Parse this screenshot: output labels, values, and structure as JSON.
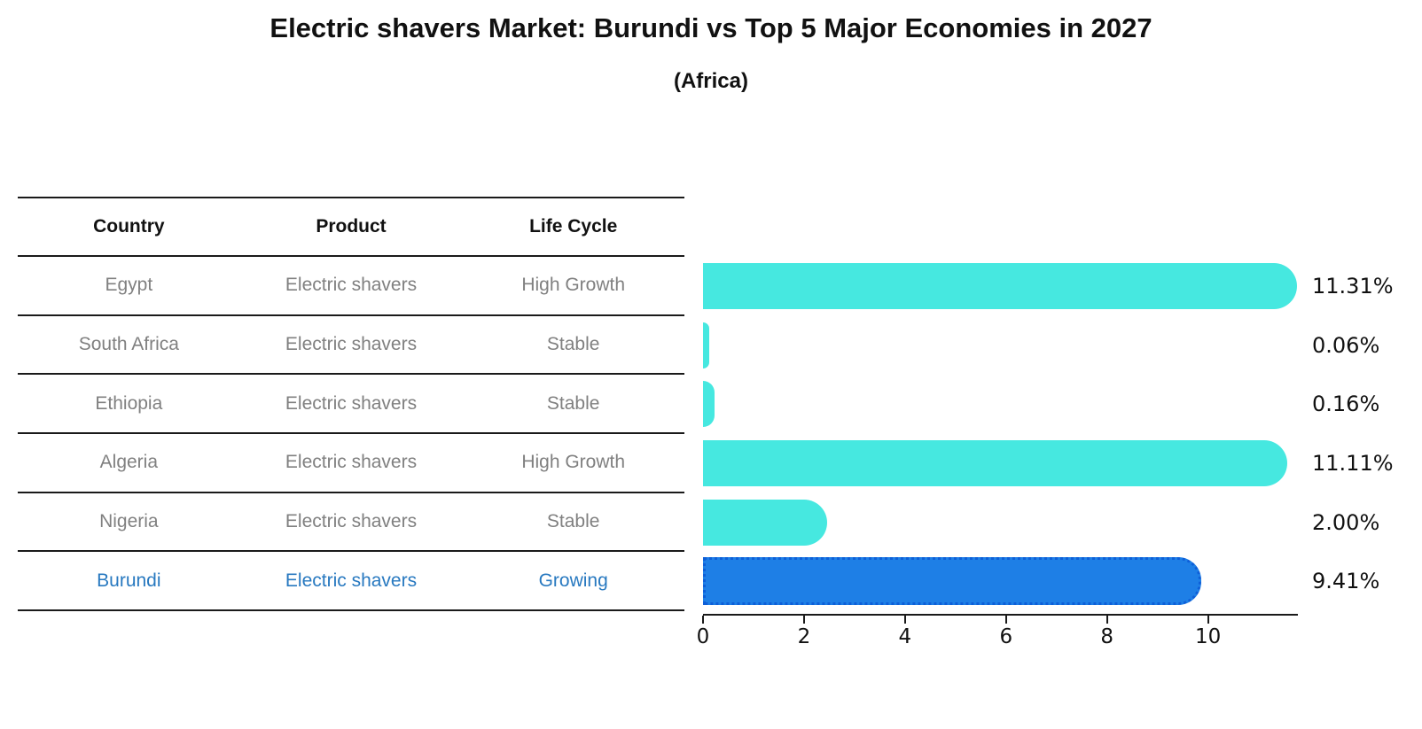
{
  "title": "Electric shavers Market: Burundi vs Top 5 Major Economies in 2027",
  "subtitle": "(Africa)",
  "table": {
    "headers": {
      "country": "Country",
      "product": "Product",
      "life_cycle": "Life Cycle"
    },
    "rows": [
      {
        "country": "Egypt",
        "product": "Electric shavers",
        "life_cycle": "High Growth"
      },
      {
        "country": "South Africa",
        "product": "Electric shavers",
        "life_cycle": "Stable"
      },
      {
        "country": "Ethiopia",
        "product": "Electric shavers",
        "life_cycle": "Stable"
      },
      {
        "country": "Algeria",
        "product": "Electric shavers",
        "life_cycle": "High Growth"
      },
      {
        "country": "Nigeria",
        "product": "Electric shavers",
        "life_cycle": "Stable"
      },
      {
        "country": "Burundi",
        "product": "Electric shavers",
        "life_cycle": "Growing"
      }
    ]
  },
  "chart_data": {
    "type": "bar",
    "orientation": "horizontal",
    "title": "Electric shavers Market: Burundi vs Top 5 Major Economies in 2027 (Africa)",
    "categories": [
      "Egypt",
      "South Africa",
      "Ethiopia",
      "Algeria",
      "Nigeria",
      "Burundi"
    ],
    "values": [
      11.31,
      0.06,
      0.16,
      11.11,
      2.0,
      9.41
    ],
    "value_labels": [
      "11.31%",
      "0.06%",
      "0.16%",
      "11.11%",
      "2.00%",
      "9.41%"
    ],
    "xticks": [
      0,
      2,
      4,
      6,
      8,
      10
    ],
    "xlim": [
      0,
      11.78
    ],
    "grid": false,
    "legend": "none",
    "bar_color": "#46e8e0",
    "highlight_color": "#1e7fe6",
    "highlight_index": 5
  },
  "colors": {
    "background": "#ffffff",
    "text": "#111111",
    "table_text": "#808080",
    "highlight_text": "#2879c0",
    "line": "#1a1a1a",
    "bar": "#46e8e0",
    "highlight_bar": "#1e7fe6"
  }
}
